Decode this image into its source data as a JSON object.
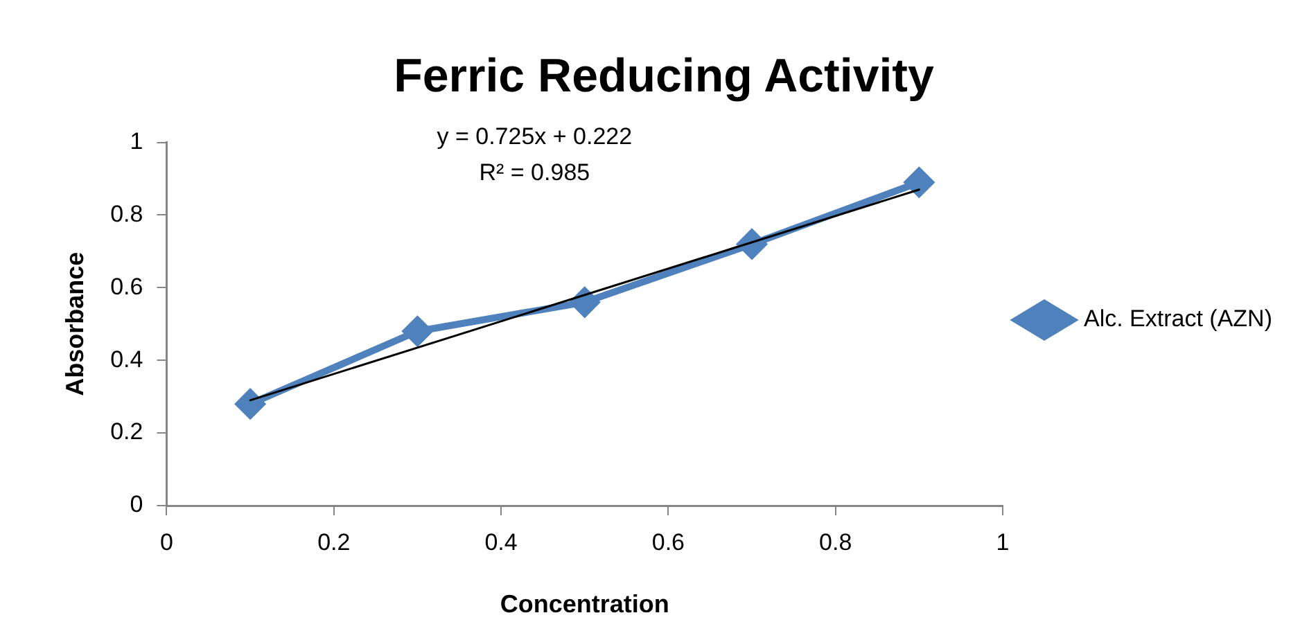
{
  "chart_data": {
    "type": "line",
    "title": "Ferric Reducing Activity",
    "xlabel": "Concentration",
    "ylabel": "Absorbance",
    "xlim": [
      0,
      1
    ],
    "xticks": [
      0,
      0.2,
      0.4,
      0.6,
      0.8,
      1
    ],
    "ylim": [
      0,
      1
    ],
    "yticks": [
      0,
      0.2,
      0.4,
      0.6,
      0.8,
      1
    ],
    "legend": "right",
    "marker": "diamond",
    "annotations": [
      "y = 0.725x + 0.222",
      "R² = 0.985"
    ],
    "series": [
      {
        "name": "Alc. Extract (AZN)",
        "color": "#4f81bd",
        "x": [
          0.1,
          0.3,
          0.5,
          0.7,
          0.9
        ],
        "values": [
          0.28,
          0.48,
          0.56,
          0.72,
          0.89
        ]
      },
      {
        "type": "line",
        "marker": "none",
        "color": "#000000",
        "x": [
          0.1,
          0.9
        ],
        "values": [
          0.29,
          0.87
        ]
      }
    ]
  }
}
